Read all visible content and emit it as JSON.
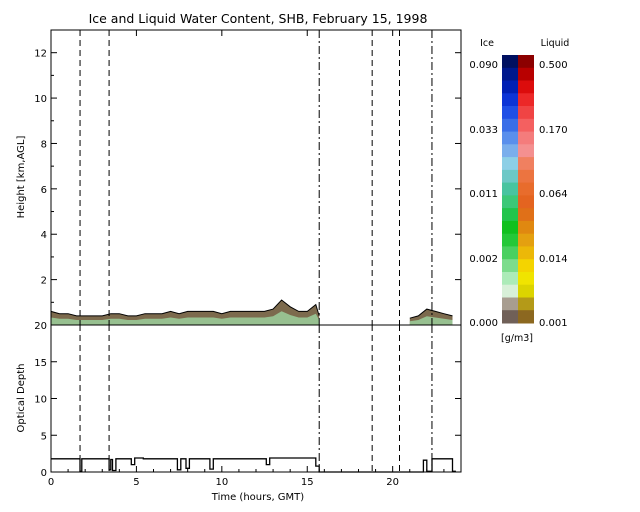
{
  "chart_data": [
    {
      "type": "area",
      "title": "Ice and Liquid Water Content, SHB, February 15, 1998",
      "ylabel": "Height [km,AGL]",
      "xlim": [
        0,
        24
      ],
      "ylim": [
        0,
        13
      ],
      "yticks": [
        "2",
        "4",
        "6",
        "8",
        "10",
        "12"
      ],
      "x": [
        0,
        0.5,
        1,
        1.5,
        2,
        2.5,
        3,
        3.5,
        4,
        4.5,
        5,
        5.5,
        6,
        6.5,
        7,
        7.5,
        8,
        8.5,
        9,
        9.5,
        10,
        10.5,
        11,
        11.5,
        12,
        12.5,
        13,
        13.5,
        14,
        14.5,
        15,
        15.5,
        15.7
      ],
      "cloud_top_km": [
        0.6,
        0.5,
        0.5,
        0.4,
        0.4,
        0.4,
        0.4,
        0.5,
        0.5,
        0.4,
        0.4,
        0.5,
        0.5,
        0.5,
        0.6,
        0.5,
        0.6,
        0.6,
        0.6,
        0.6,
        0.5,
        0.6,
        0.6,
        0.6,
        0.6,
        0.6,
        0.7,
        1.1,
        0.8,
        0.6,
        0.6,
        0.9,
        0.4
      ],
      "x2": [
        21,
        21.5,
        22,
        22.5,
        23,
        23.5
      ],
      "cloud_top_km2": [
        0.3,
        0.4,
        0.7,
        0.6,
        0.5,
        0.4
      ],
      "ice_fill": "#7c6a4d",
      "liquid_fill": "#9ccf9c",
      "vertical_markers": {
        "dashed": [
          1.7,
          3.4,
          18.8,
          20.4
        ],
        "dash_dot": [
          15.7,
          22.3
        ]
      }
    },
    {
      "type": "line",
      "xlabel": "Time (hours, GMT)",
      "ylabel": "Optical Depth",
      "xlim": [
        0,
        24
      ],
      "ylim": [
        0,
        20
      ],
      "xticks": [
        "0",
        "5",
        "10",
        "15",
        "20"
      ],
      "yticks": [
        "0",
        "5",
        "10",
        "15",
        "20"
      ],
      "x": [
        0,
        1.7,
        1.7,
        1.8,
        1.8,
        3.4,
        3.4,
        3.5,
        3.5,
        3.6,
        3.6,
        3.8,
        3.8,
        4.7,
        4.7,
        4.9,
        4.9,
        5.4,
        5.4,
        7.4,
        7.4,
        7.6,
        7.6,
        7.9,
        7.9,
        8.1,
        8.1,
        8.6,
        8.6,
        9.3,
        9.3,
        9.5,
        9.5,
        12.6,
        12.6,
        12.8,
        12.8,
        15.5,
        15.5,
        15.7,
        15.7,
        21.8,
        21.8,
        22.0,
        22.0,
        22.3,
        22.3,
        22.4,
        22.4,
        23.5,
        23.5,
        23.7
      ],
      "values": [
        1.8,
        1.8,
        0.1,
        0.1,
        1.8,
        1.8,
        0.3,
        0.3,
        1.7,
        1.7,
        0.2,
        0.2,
        1.8,
        1.8,
        1.0,
        1.0,
        1.9,
        1.9,
        1.8,
        1.8,
        0.3,
        0.3,
        1.8,
        1.8,
        0.5,
        0.5,
        1.8,
        1.8,
        1.8,
        1.8,
        0.4,
        0.4,
        1.8,
        1.8,
        1.0,
        1.0,
        1.9,
        1.9,
        0.8,
        0.8,
        0.0,
        0.0,
        1.6,
        1.6,
        0.1,
        0.1,
        1.8,
        1.8,
        1.8,
        1.8,
        0.1,
        0.1
      ],
      "vertical_markers": {
        "dashed": [
          1.7,
          3.4,
          18.8,
          20.4
        ],
        "dash_dot": [
          15.7,
          22.3
        ]
      }
    }
  ],
  "colorbar": {
    "ice_label": "Ice",
    "liquid_label": "Liquid",
    "unit": "[g/m3]",
    "ice_ticks": [
      "0.090",
      "0.033",
      "0.011",
      "0.002",
      "0.000"
    ],
    "liquid_ticks": [
      "0.500",
      "0.170",
      "0.064",
      "0.014",
      "0.001"
    ],
    "ice_colors": [
      "#001060",
      "#00188c",
      "#0020b4",
      "#0c34d6",
      "#1f4fe6",
      "#3a6ee8",
      "#5a8fec",
      "#7aaeec",
      "#8dcfe6",
      "#6cc8c6",
      "#48c4a0",
      "#3cc878",
      "#22c44c",
      "#10c01e",
      "#24c838",
      "#4ad060",
      "#7cdc8c",
      "#acebb8",
      "#d8f0d8",
      "#a89d90",
      "#706058"
    ],
    "liquid_colors": [
      "#8c0000",
      "#b80000",
      "#dc0c0c",
      "#ec2828",
      "#f04444",
      "#f46060",
      "#f47c7c",
      "#f49090",
      "#f08060",
      "#ec7440",
      "#e86c2c",
      "#e46420",
      "#e07018",
      "#e08810",
      "#e4a010",
      "#ecb808",
      "#f4d400",
      "#f0e400",
      "#dcd400",
      "#b49a18",
      "#8c6820"
    ]
  }
}
